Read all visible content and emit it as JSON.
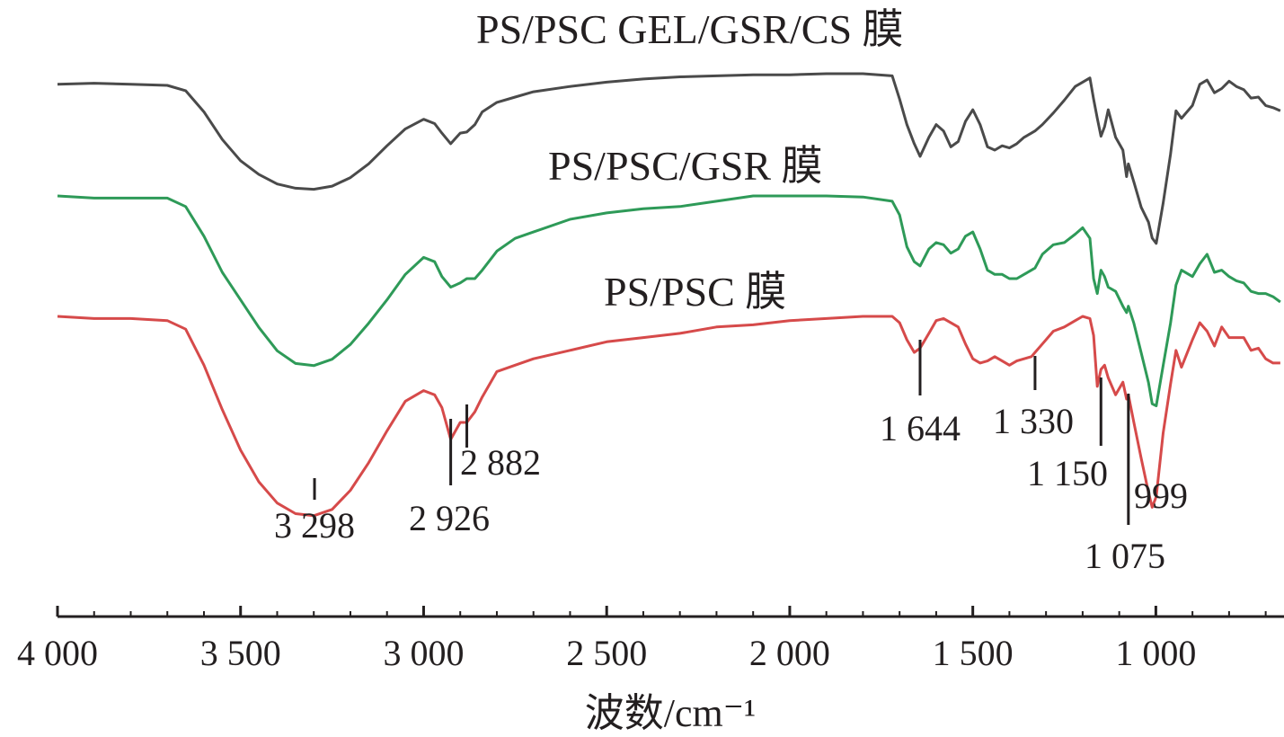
{
  "chart_data": {
    "type": "line",
    "title": "",
    "xlabel": "波数/cm⁻¹",
    "ylabel": "",
    "xlim": [
      4000,
      650
    ],
    "x_reversed": true,
    "grid": false,
    "legend": "labels above each curve",
    "x_ticks": [
      {
        "value": 4000,
        "label": "4 000"
      },
      {
        "value": 3500,
        "label": "3 500"
      },
      {
        "value": 3000,
        "label": "3 000"
      },
      {
        "value": 2500,
        "label": "2 500"
      },
      {
        "value": 2000,
        "label": "2 000"
      },
      {
        "value": 1500,
        "label": "1 500"
      },
      {
        "value": 1000,
        "label": "1 000"
      }
    ],
    "series": [
      {
        "name": "PS/PSC GEL/GSR/CS 膜",
        "color": "#4a4a4a",
        "offset": 0,
        "x": [
          4000,
          3900,
          3800,
          3700,
          3650,
          3600,
          3550,
          3500,
          3450,
          3400,
          3350,
          3300,
          3250,
          3200,
          3150,
          3100,
          3050,
          3000,
          2970,
          2950,
          2926,
          2900,
          2882,
          2860,
          2840,
          2800,
          2750,
          2700,
          2600,
          2500,
          2400,
          2300,
          2200,
          2100,
          2000,
          1900,
          1800,
          1720,
          1700,
          1680,
          1660,
          1644,
          1620,
          1600,
          1580,
          1560,
          1540,
          1520,
          1500,
          1480,
          1460,
          1440,
          1420,
          1400,
          1380,
          1360,
          1340,
          1330,
          1310,
          1280,
          1250,
          1220,
          1200,
          1180,
          1170,
          1160,
          1150,
          1140,
          1130,
          1110,
          1090,
          1080,
          1075,
          1060,
          1040,
          1020,
          1010,
          999,
          980,
          960,
          945,
          930,
          900,
          880,
          860,
          840,
          820,
          800,
          780,
          760,
          740,
          720,
          700,
          680,
          660
        ],
        "y": [
          0.1,
          0.09,
          0.1,
          0.11,
          0.16,
          0.36,
          0.62,
          0.82,
          0.95,
          1.04,
          1.08,
          1.09,
          1.06,
          0.98,
          0.85,
          0.68,
          0.52,
          0.43,
          0.47,
          0.56,
          0.66,
          0.56,
          0.55,
          0.48,
          0.36,
          0.27,
          0.22,
          0.17,
          0.12,
          0.08,
          0.05,
          0.03,
          0.02,
          0.01,
          0.01,
          0.0,
          0.0,
          0.02,
          0.24,
          0.48,
          0.66,
          0.78,
          0.6,
          0.48,
          0.54,
          0.69,
          0.64,
          0.45,
          0.34,
          0.48,
          0.69,
          0.72,
          0.68,
          0.7,
          0.66,
          0.6,
          0.56,
          0.54,
          0.48,
          0.37,
          0.25,
          0.12,
          0.08,
          0.04,
          0.24,
          0.42,
          0.59,
          0.5,
          0.34,
          0.6,
          0.72,
          0.97,
          0.85,
          1.02,
          1.26,
          1.4,
          1.55,
          1.6,
          1.22,
          0.76,
          0.35,
          0.42,
          0.3,
          0.1,
          0.06,
          0.18,
          0.14,
          0.07,
          0.12,
          0.15,
          0.23,
          0.22,
          0.3,
          0.32,
          0.35
        ]
      },
      {
        "name": "PS/PSC/GSR 膜",
        "color": "#2e9a58",
        "offset": 1,
        "x": [
          4000,
          3900,
          3800,
          3700,
          3650,
          3600,
          3550,
          3500,
          3450,
          3400,
          3350,
          3300,
          3250,
          3200,
          3150,
          3100,
          3050,
          3000,
          2970,
          2950,
          2926,
          2900,
          2882,
          2860,
          2840,
          2800,
          2750,
          2700,
          2600,
          2500,
          2400,
          2300,
          2200,
          2100,
          2000,
          1900,
          1800,
          1720,
          1700,
          1680,
          1660,
          1644,
          1620,
          1600,
          1580,
          1560,
          1540,
          1520,
          1500,
          1480,
          1460,
          1440,
          1420,
          1400,
          1380,
          1360,
          1340,
          1330,
          1310,
          1280,
          1250,
          1220,
          1200,
          1180,
          1170,
          1160,
          1150,
          1140,
          1130,
          1110,
          1090,
          1080,
          1075,
          1060,
          1040,
          1020,
          1010,
          999,
          980,
          960,
          945,
          930,
          900,
          880,
          860,
          840,
          820,
          800,
          780,
          760,
          740,
          720,
          700,
          680,
          660
        ],
        "y": [
          0.0,
          0.02,
          0.02,
          0.02,
          0.1,
          0.38,
          0.72,
          0.98,
          1.24,
          1.46,
          1.58,
          1.6,
          1.54,
          1.4,
          1.2,
          0.98,
          0.74,
          0.58,
          0.62,
          0.76,
          0.86,
          0.82,
          0.78,
          0.78,
          0.7,
          0.52,
          0.4,
          0.34,
          0.22,
          0.16,
          0.12,
          0.1,
          0.05,
          0.0,
          0.0,
          0.0,
          0.01,
          0.05,
          0.18,
          0.48,
          0.62,
          0.66,
          0.5,
          0.44,
          0.46,
          0.54,
          0.5,
          0.38,
          0.34,
          0.5,
          0.7,
          0.74,
          0.74,
          0.78,
          0.78,
          0.74,
          0.7,
          0.68,
          0.55,
          0.46,
          0.44,
          0.36,
          0.3,
          0.4,
          0.78,
          0.92,
          0.7,
          0.76,
          0.86,
          0.9,
          1.04,
          1.1,
          1.04,
          1.2,
          1.48,
          1.76,
          1.96,
          1.98,
          1.6,
          1.2,
          0.84,
          0.7,
          0.76,
          0.64,
          0.55,
          0.72,
          0.7,
          0.76,
          0.8,
          0.82,
          0.9,
          0.92,
          0.92,
          0.95,
          1.0
        ]
      },
      {
        "name": "PS/PSC 膜",
        "color": "#d64a4a",
        "offset": 2,
        "x": [
          4000,
          3900,
          3800,
          3700,
          3650,
          3600,
          3550,
          3500,
          3450,
          3400,
          3350,
          3300,
          3250,
          3200,
          3150,
          3100,
          3050,
          3000,
          2970,
          2950,
          2926,
          2900,
          2882,
          2860,
          2840,
          2800,
          2750,
          2700,
          2600,
          2500,
          2400,
          2300,
          2200,
          2100,
          2000,
          1900,
          1800,
          1720,
          1700,
          1680,
          1660,
          1644,
          1620,
          1600,
          1580,
          1560,
          1540,
          1520,
          1500,
          1480,
          1460,
          1440,
          1420,
          1400,
          1380,
          1360,
          1340,
          1330,
          1310,
          1280,
          1250,
          1220,
          1200,
          1180,
          1170,
          1160,
          1150,
          1140,
          1130,
          1110,
          1090,
          1080,
          1075,
          1060,
          1040,
          1020,
          1010,
          999,
          980,
          960,
          945,
          930,
          900,
          880,
          860,
          840,
          820,
          800,
          780,
          760,
          740,
          720,
          700,
          680,
          660
        ],
        "y": [
          0.0,
          0.02,
          0.02,
          0.04,
          0.12,
          0.46,
          0.88,
          1.26,
          1.56,
          1.76,
          1.86,
          1.88,
          1.82,
          1.64,
          1.38,
          1.08,
          0.8,
          0.7,
          0.74,
          0.86,
          1.16,
          1.0,
          1.0,
          0.9,
          0.76,
          0.52,
          0.46,
          0.4,
          0.32,
          0.24,
          0.2,
          0.16,
          0.1,
          0.08,
          0.04,
          0.02,
          0.0,
          0.0,
          0.06,
          0.22,
          0.34,
          0.3,
          0.16,
          0.04,
          0.02,
          0.06,
          0.1,
          0.26,
          0.4,
          0.44,
          0.42,
          0.38,
          0.42,
          0.46,
          0.42,
          0.4,
          0.38,
          0.34,
          0.26,
          0.14,
          0.1,
          0.04,
          0.0,
          0.02,
          0.18,
          0.66,
          0.5,
          0.46,
          0.58,
          0.74,
          0.62,
          0.78,
          0.74,
          1.0,
          1.34,
          1.66,
          1.8,
          1.7,
          1.1,
          0.64,
          0.32,
          0.48,
          0.22,
          0.06,
          0.14,
          0.28,
          0.1,
          0.2,
          0.2,
          0.2,
          0.32,
          0.3,
          0.4,
          0.44,
          0.44
        ]
      }
    ],
    "peak_labels": [
      {
        "x": 3298,
        "label": "3 298"
      },
      {
        "x": 2926,
        "label": "2 926"
      },
      {
        "x": 2882,
        "label": "2 882"
      },
      {
        "x": 1644,
        "label": "1 644"
      },
      {
        "x": 1330,
        "label": "1 330"
      },
      {
        "x": 1150,
        "label": "1 150"
      },
      {
        "x": 1075,
        "label": "1 075"
      },
      {
        "x": 999,
        "label": "999"
      }
    ]
  }
}
